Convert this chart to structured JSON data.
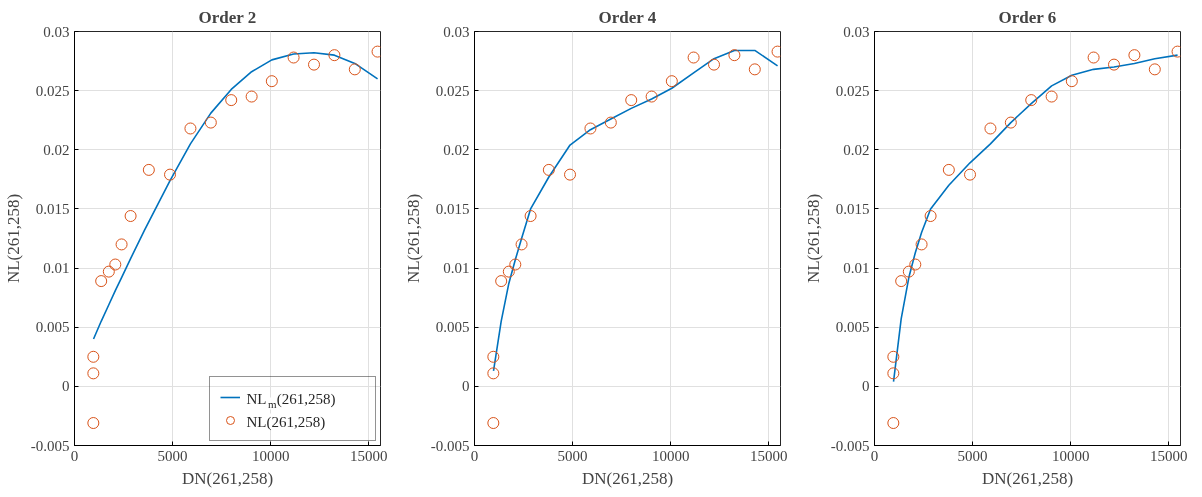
{
  "chart_data": [
    {
      "type": "scatter",
      "title": "Order 2",
      "xlabel": "DN(261,258)",
      "ylabel": "NL(261,258)",
      "xlim": [
        0,
        15600
      ],
      "ylim": [
        -0.005,
        0.03
      ],
      "xticks": [
        0,
        5000,
        10000,
        15000
      ],
      "yticks": [
        -0.005,
        0,
        0.005,
        0.01,
        0.015,
        0.02,
        0.025,
        0.03
      ],
      "grid": true,
      "legend": "bottom right",
      "series": [
        {
          "type": "line",
          "name": "NL$_{m}$(261,258)",
          "color": "#0072bd",
          "line_style": "solid",
          "x": [
            970,
            1360,
            1750,
            2080,
            2400,
            2860,
            3570,
            4870,
            5910,
            6950,
            7990,
            9030,
            10060,
            11170,
            12210,
            13250,
            14290,
            15450
          ],
          "values": [
            0.004,
            0.0055,
            0.0069,
            0.0081,
            0.0092,
            0.0108,
            0.0132,
            0.0174,
            0.0205,
            0.0231,
            0.0251,
            0.0266,
            0.0276,
            0.0281,
            0.0282,
            0.028,
            0.0273,
            0.026
          ]
        },
        {
          "name": "NL(261,258)",
          "color": "#d95319",
          "marker": "circle",
          "x": [
            960,
            960,
            960,
            1360,
            1750,
            2080,
            2400,
            2860,
            3790,
            4870,
            5910,
            6950,
            7990,
            9030,
            10060,
            11170,
            12210,
            13250,
            14290,
            15450
          ],
          "values": [
            0.0025,
            0.0011,
            -0.0031,
            0.0089,
            0.0097,
            0.0103,
            0.012,
            0.0144,
            0.0183,
            0.0179,
            0.0218,
            0.0223,
            0.0242,
            0.0245,
            0.0258,
            0.0278,
            0.0272,
            0.028,
            0.0268,
            0.0283
          ]
        }
      ]
    },
    {
      "type": "scatter",
      "title": "Order 4",
      "xlabel": "DN(261,258)",
      "ylabel": "NL(261,258)",
      "xlim": [
        0,
        15600
      ],
      "ylim": [
        -0.005,
        0.03
      ],
      "xticks": [
        0,
        5000,
        10000,
        15000
      ],
      "yticks": [
        -0.005,
        0,
        0.005,
        0.01,
        0.015,
        0.02,
        0.025,
        0.03
      ],
      "grid": true,
      "series": [
        {
          "type": "line",
          "color": "#0072bd",
          "line_style": "solid",
          "x": [
            970,
            1360,
            1750,
            2080,
            2400,
            2860,
            3790,
            4870,
            5910,
            6950,
            7990,
            9030,
            10060,
            11170,
            12210,
            13250,
            14290,
            15450
          ],
          "values": [
            0.0013,
            0.0055,
            0.0087,
            0.0107,
            0.0125,
            0.015,
            0.0177,
            0.0204,
            0.0217,
            0.0226,
            0.0235,
            0.0243,
            0.0252,
            0.0265,
            0.0277,
            0.0284,
            0.0284,
            0.0271
          ]
        },
        {
          "color": "#d95319",
          "marker": "circle",
          "x": [
            960,
            960,
            960,
            1360,
            1750,
            2080,
            2400,
            2860,
            3790,
            4870,
            5910,
            6950,
            7990,
            9030,
            10060,
            11170,
            12210,
            13250,
            14290,
            15450
          ],
          "values": [
            0.0025,
            0.0011,
            -0.0031,
            0.0089,
            0.0097,
            0.0103,
            0.012,
            0.0144,
            0.0183,
            0.0179,
            0.0218,
            0.0223,
            0.0242,
            0.0245,
            0.0258,
            0.0278,
            0.0272,
            0.028,
            0.0268,
            0.0283
          ]
        }
      ]
    },
    {
      "type": "scatter",
      "title": "Order 6",
      "xlabel": "DN(261,258)",
      "ylabel": "NL(261,258)",
      "xlim": [
        0,
        15600
      ],
      "ylim": [
        -0.005,
        0.03
      ],
      "xticks": [
        0,
        5000,
        10000,
        15000
      ],
      "yticks": [
        -0.005,
        0,
        0.005,
        0.01,
        0.015,
        0.02,
        0.025,
        0.03
      ],
      "grid": true,
      "series": [
        {
          "type": "line",
          "color": "#0072bd",
          "line_style": "solid",
          "x": [
            970,
            1360,
            1750,
            2080,
            2400,
            2860,
            3790,
            4870,
            5910,
            6950,
            7990,
            9030,
            10060,
            11170,
            12210,
            13250,
            14290,
            15450
          ],
          "values": [
            0.0004,
            0.0057,
            0.0092,
            0.0113,
            0.013,
            0.015,
            0.017,
            0.0189,
            0.0205,
            0.0223,
            0.0239,
            0.0254,
            0.0263,
            0.0268,
            0.027,
            0.0273,
            0.0277,
            0.028
          ]
        },
        {
          "color": "#d95319",
          "marker": "circle",
          "x": [
            960,
            960,
            960,
            1360,
            1750,
            2080,
            2400,
            2860,
            3790,
            4870,
            5910,
            6950,
            7990,
            9030,
            10060,
            11170,
            12210,
            13250,
            14290,
            15450
          ],
          "values": [
            0.0025,
            0.0011,
            -0.0031,
            0.0089,
            0.0097,
            0.0103,
            0.012,
            0.0144,
            0.0183,
            0.0179,
            0.0218,
            0.0223,
            0.0242,
            0.0245,
            0.0258,
            0.0278,
            0.0272,
            0.028,
            0.0268,
            0.0283
          ]
        }
      ]
    }
  ]
}
